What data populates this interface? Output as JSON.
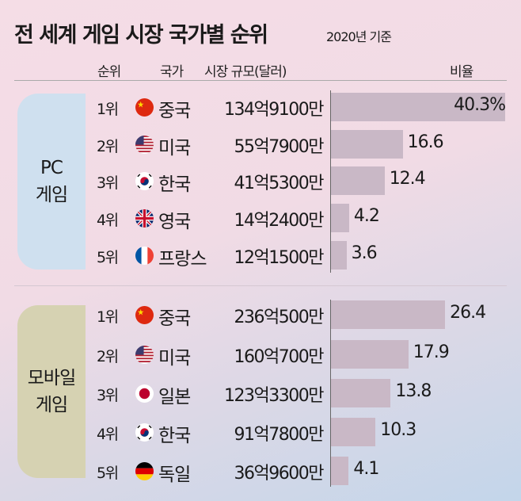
{
  "title": "전 세계 게임 시장 국가별 순위",
  "subtitle": "2020년 기준",
  "headers": {
    "rank": "순위",
    "country": "국가",
    "size": "시장 규모(달러)",
    "ratio": "비율"
  },
  "colors": {
    "bar": "#c9b8c6",
    "pc_label": "#cfe0ef",
    "mobile_label": "#d6d2b2"
  },
  "chart_data": {
    "type": "bar",
    "title": "전 세계 게임 시장 국가별 순위",
    "subtitle": "2020년 기준",
    "groups": [
      {
        "name": "PC 게임",
        "line1": "PC",
        "line2": "게임",
        "rows": [
          {
            "rank": "1위",
            "country": "중국",
            "flag": "china-flag",
            "size": "134억9100만",
            "value": 40.3,
            "label": "40.3%"
          },
          {
            "rank": "2위",
            "country": "미국",
            "flag": "usa-flag",
            "size": "55억7900만",
            "value": 16.6,
            "label": "16.6"
          },
          {
            "rank": "3위",
            "country": "한국",
            "flag": "korea-flag",
            "size": "41억5300만",
            "value": 12.4,
            "label": "12.4"
          },
          {
            "rank": "4위",
            "country": "영국",
            "flag": "uk-flag",
            "size": "14억2400만",
            "value": 4.2,
            "label": "4.2"
          },
          {
            "rank": "5위",
            "country": "프랑스",
            "flag": "france-flag",
            "size": "12억1500만",
            "value": 3.6,
            "label": "3.6"
          }
        ]
      },
      {
        "name": "모바일 게임",
        "line1": "모바일",
        "line2": "게임",
        "rows": [
          {
            "rank": "1위",
            "country": "중국",
            "flag": "china-flag",
            "size": "236억500만",
            "value": 26.4,
            "label": "26.4"
          },
          {
            "rank": "2위",
            "country": "미국",
            "flag": "usa-flag",
            "size": "160억700만",
            "value": 17.9,
            "label": "17.9"
          },
          {
            "rank": "3위",
            "country": "일본",
            "flag": "japan-flag",
            "size": "123억3300만",
            "value": 13.8,
            "label": "13.8"
          },
          {
            "rank": "4위",
            "country": "한국",
            "flag": "korea-flag",
            "size": "91억7800만",
            "value": 10.3,
            "label": "10.3"
          },
          {
            "rank": "5위",
            "country": "독일",
            "flag": "germany-flag",
            "size": "36억9600만",
            "value": 4.1,
            "label": "4.1"
          }
        ]
      }
    ],
    "xlim": [
      0,
      40.3
    ]
  }
}
